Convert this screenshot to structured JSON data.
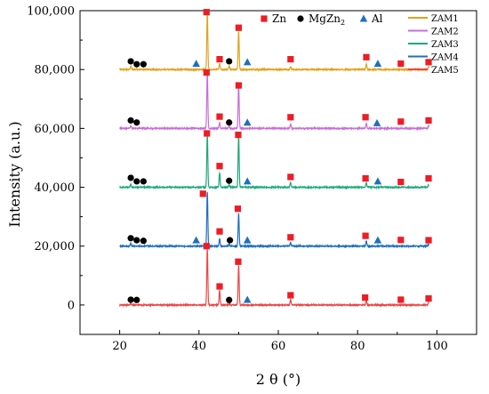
{
  "chart_data": {
    "type": "line",
    "xlabel": "2 θ (°)",
    "ylabel": "Intensity (a.u.)",
    "xlim": [
      10,
      110
    ],
    "ylim": [
      -10000,
      100000
    ],
    "x_ticks": [
      20,
      40,
      60,
      80,
      100
    ],
    "y_ticks": [
      0,
      20000,
      40000,
      60000,
      80000,
      100000
    ],
    "y_tick_labels": [
      "0",
      "20,000",
      "40,000",
      "60,000",
      "80,000",
      "100,000"
    ],
    "grid": false,
    "legend": {
      "placement": "top-right",
      "entries": [
        "ZAM1",
        "ZAM2",
        "ZAM3",
        "ZAM4",
        "ZAM5"
      ]
    },
    "phase_legend": [
      {
        "label": "Zn",
        "marker": "square",
        "color": "#ee1c24"
      },
      {
        "label": "MgZn",
        "sub": "2",
        "marker": "circle",
        "color": "#000000"
      },
      {
        "label": "Al",
        "marker": "triangle",
        "color": "#1f6fbf"
      }
    ],
    "series": [
      {
        "name": "ZAM1",
        "color": "#e0a31d",
        "baseline": 80000,
        "peaks": [
          [
            22.8,
            1200
          ],
          [
            42.1,
            19000
          ],
          [
            45.2,
            1800
          ],
          [
            47.6,
            1200
          ],
          [
            50.0,
            13000
          ],
          [
            63.1,
            1000
          ],
          [
            82.2,
            2000
          ],
          [
            97.9,
            900
          ]
        ],
        "markers": [
          {
            "type": "square",
            "x": 41.9,
            "y": 99500
          },
          {
            "type": "square",
            "x": 45.2,
            "y": 83500
          },
          {
            "type": "square",
            "x": 50.0,
            "y": 94200
          },
          {
            "type": "square",
            "x": 63.1,
            "y": 83500
          },
          {
            "type": "square",
            "x": 82.2,
            "y": 84200
          },
          {
            "type": "square",
            "x": 90.9,
            "y": 82000
          },
          {
            "type": "square",
            "x": 97.9,
            "y": 82500
          },
          {
            "type": "circle",
            "x": 22.8,
            "y": 82800
          },
          {
            "type": "circle",
            "x": 24.3,
            "y": 81800
          },
          {
            "type": "circle",
            "x": 26.0,
            "y": 81800
          },
          {
            "type": "circle",
            "x": 47.6,
            "y": 82800
          },
          {
            "type": "triangle",
            "x": 39.3,
            "y": 82000
          },
          {
            "type": "triangle",
            "x": 52.2,
            "y": 82500
          },
          {
            "type": "triangle",
            "x": 85.1,
            "y": 82000
          }
        ]
      },
      {
        "name": "ZAM2",
        "color": "#c86dd7",
        "baseline": 60000,
        "peaks": [
          [
            22.8,
            900
          ],
          [
            42.1,
            19000
          ],
          [
            45.2,
            2000
          ],
          [
            47.6,
            800
          ],
          [
            50.0,
            14500
          ],
          [
            63.1,
            1500
          ],
          [
            82.2,
            1800
          ],
          [
            97.9,
            800
          ]
        ],
        "markers": [
          {
            "type": "square",
            "x": 41.9,
            "y": 79000
          },
          {
            "type": "square",
            "x": 45.2,
            "y": 64000
          },
          {
            "type": "square",
            "x": 50.0,
            "y": 74600
          },
          {
            "type": "square",
            "x": 63.1,
            "y": 63800
          },
          {
            "type": "square",
            "x": 82.0,
            "y": 63800
          },
          {
            "type": "square",
            "x": 90.9,
            "y": 62300
          },
          {
            "type": "square",
            "x": 97.9,
            "y": 62700
          },
          {
            "type": "circle",
            "x": 22.8,
            "y": 62700
          },
          {
            "type": "circle",
            "x": 24.3,
            "y": 62000
          },
          {
            "type": "circle",
            "x": 47.6,
            "y": 62000
          },
          {
            "type": "triangle",
            "x": 52.2,
            "y": 62000
          },
          {
            "type": "triangle",
            "x": 84.9,
            "y": 61800
          }
        ]
      },
      {
        "name": "ZAM3",
        "color": "#1ea87a",
        "baseline": 40000,
        "peaks": [
          [
            22.8,
            1000
          ],
          [
            42.1,
            18000
          ],
          [
            45.2,
            5000
          ],
          [
            47.6,
            800
          ],
          [
            50.0,
            17500
          ],
          [
            63.1,
            1600
          ],
          [
            82.2,
            1500
          ],
          [
            97.9,
            800
          ]
        ],
        "markers": [
          {
            "type": "square",
            "x": 42.0,
            "y": 58300
          },
          {
            "type": "square",
            "x": 45.2,
            "y": 47200
          },
          {
            "type": "square",
            "x": 49.9,
            "y": 57800
          },
          {
            "type": "square",
            "x": 63.1,
            "y": 43500
          },
          {
            "type": "square",
            "x": 82.0,
            "y": 43000
          },
          {
            "type": "square",
            "x": 90.9,
            "y": 41800
          },
          {
            "type": "square",
            "x": 97.9,
            "y": 43000
          },
          {
            "type": "circle",
            "x": 22.8,
            "y": 43200
          },
          {
            "type": "circle",
            "x": 24.3,
            "y": 42000
          },
          {
            "type": "circle",
            "x": 26.0,
            "y": 42000
          },
          {
            "type": "circle",
            "x": 47.6,
            "y": 42200
          },
          {
            "type": "triangle",
            "x": 52.2,
            "y": 42000
          },
          {
            "type": "triangle",
            "x": 85.1,
            "y": 42000
          }
        ]
      },
      {
        "name": "ZAM4",
        "color": "#1f6fbf",
        "baseline": 20000,
        "peaks": [
          [
            22.8,
            900
          ],
          [
            42.1,
            18500
          ],
          [
            45.2,
            2500
          ],
          [
            47.6,
            700
          ],
          [
            50.0,
            11000
          ],
          [
            63.1,
            1200
          ],
          [
            82.2,
            1800
          ],
          [
            97.9,
            700
          ]
        ],
        "markers": [
          {
            "type": "square",
            "x": 41.0,
            "y": 37800
          },
          {
            "type": "square",
            "x": 45.2,
            "y": 25000
          },
          {
            "type": "square",
            "x": 49.8,
            "y": 32700
          },
          {
            "type": "square",
            "x": 63.1,
            "y": 23000
          },
          {
            "type": "square",
            "x": 82.0,
            "y": 23500
          },
          {
            "type": "square",
            "x": 90.9,
            "y": 22100
          },
          {
            "type": "square",
            "x": 97.9,
            "y": 22000
          },
          {
            "type": "circle",
            "x": 22.8,
            "y": 22700
          },
          {
            "type": "circle",
            "x": 24.3,
            "y": 22000
          },
          {
            "type": "circle",
            "x": 26.0,
            "y": 21800
          },
          {
            "type": "circle",
            "x": 47.8,
            "y": 22000
          },
          {
            "type": "triangle",
            "x": 39.3,
            "y": 22000
          },
          {
            "type": "triangle",
            "x": 52.2,
            "y": 22000
          },
          {
            "type": "triangle",
            "x": 85.1,
            "y": 22000
          }
        ]
      },
      {
        "name": "ZAM5",
        "color": "#ef4545",
        "baseline": 0,
        "peaks": [
          [
            22.8,
            600
          ],
          [
            42.1,
            19000
          ],
          [
            45.2,
            5000
          ],
          [
            47.6,
            500
          ],
          [
            50.0,
            13500
          ],
          [
            63.1,
            1800
          ],
          [
            82.2,
            1500
          ],
          [
            97.9,
            800
          ]
        ],
        "markers": [
          {
            "type": "square",
            "x": 41.9,
            "y": 20000
          },
          {
            "type": "square",
            "x": 45.2,
            "y": 6300
          },
          {
            "type": "square",
            "x": 49.9,
            "y": 14700
          },
          {
            "type": "square",
            "x": 63.1,
            "y": 3300
          },
          {
            "type": "square",
            "x": 81.9,
            "y": 2500
          },
          {
            "type": "square",
            "x": 90.9,
            "y": 1800
          },
          {
            "type": "square",
            "x": 97.9,
            "y": 2200
          },
          {
            "type": "circle",
            "x": 22.8,
            "y": 1800
          },
          {
            "type": "circle",
            "x": 24.3,
            "y": 1700
          },
          {
            "type": "circle",
            "x": 47.6,
            "y": 1700
          },
          {
            "type": "triangle",
            "x": 52.2,
            "y": 1800
          }
        ]
      }
    ]
  }
}
